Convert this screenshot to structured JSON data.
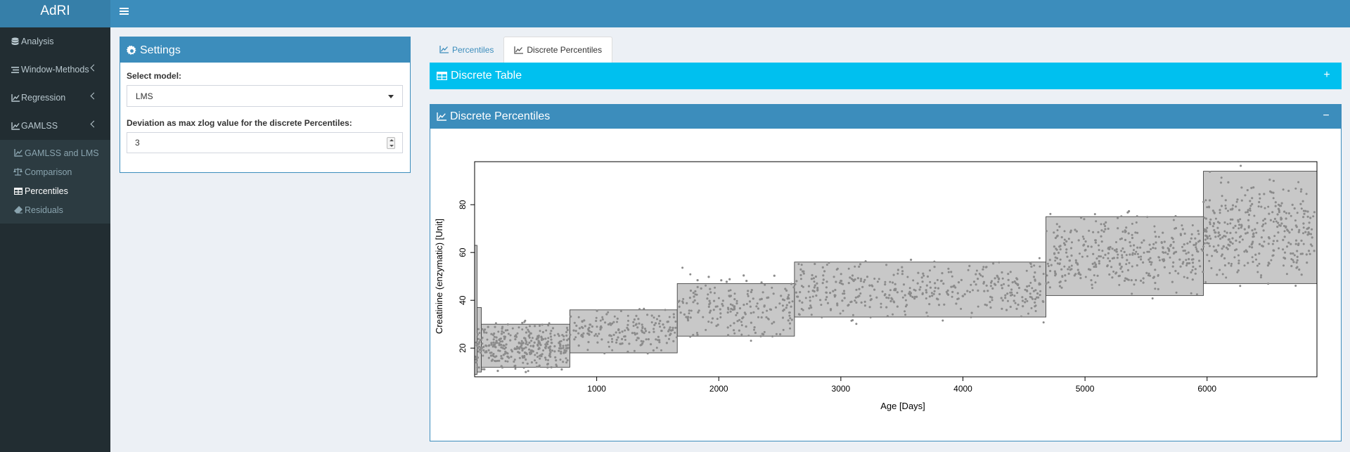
{
  "app": {
    "title": "AdRI"
  },
  "sidebar": {
    "items": [
      {
        "label": "Analysis",
        "icon": "database-icon",
        "expandable": false
      },
      {
        "label": "Window-Methods",
        "icon": "list-icon",
        "expandable": true
      },
      {
        "label": "Regression",
        "icon": "line-chart-icon",
        "expandable": true
      },
      {
        "label": "GAMLSS",
        "icon": "line-chart-icon",
        "expandable": true
      }
    ],
    "gamlss_submenu": [
      {
        "label": "GAMLSS and LMS",
        "icon": "line-chart-icon",
        "active": false
      },
      {
        "label": "Comparison",
        "icon": "balance-scale-icon",
        "active": false
      },
      {
        "label": "Percentiles",
        "icon": "table-icon",
        "active": true
      },
      {
        "label": "Residuals",
        "icon": "eraser-icon",
        "active": false
      }
    ]
  },
  "settings": {
    "title": "Settings",
    "model_label": "Select model:",
    "model_value": "LMS",
    "deviation_label": "Deviation as max zlog value for the discrete Percentiles:",
    "deviation_value": "3"
  },
  "tabs": [
    {
      "label": "Percentiles",
      "active": false
    },
    {
      "label": "Discrete Percentiles",
      "active": true
    }
  ],
  "discrete_table": {
    "title": "Discrete Table",
    "tool": "+"
  },
  "discrete_percentiles": {
    "title": "Discrete Percentiles",
    "tool": "−"
  },
  "colors": {
    "header": "#3c8dbc",
    "logo": "#367fa9",
    "sidebar": "#222d32",
    "info_box": "#00c0ef",
    "band_fill": "#bebebe",
    "points": "#8c8c8c"
  },
  "chart_data": {
    "type": "scatter",
    "xlabel": "Age [Days]",
    "ylabel": "Creatinine (enzymatic) [Unit]",
    "xlim": [
      0,
      6900
    ],
    "ylim": [
      8,
      98
    ],
    "xticks": [
      1000,
      2000,
      3000,
      4000,
      5000,
      6000
    ],
    "yticks": [
      20,
      40,
      60,
      80
    ],
    "bands": [
      {
        "x": [
          0,
          20
        ],
        "low": 9,
        "high": 63
      },
      {
        "x": [
          20,
          55
        ],
        "low": 10,
        "high": 37
      },
      {
        "x": [
          55,
          780
        ],
        "low": 12,
        "high": 30
      },
      {
        "x": [
          780,
          1660
        ],
        "low": 18,
        "high": 36
      },
      {
        "x": [
          1660,
          2620
        ],
        "low": 25,
        "high": 47
      },
      {
        "x": [
          2620,
          4680
        ],
        "low": 33,
        "high": 56
      },
      {
        "x": [
          4680,
          5970
        ],
        "low": 42,
        "high": 75
      },
      {
        "x": [
          5970,
          6900
        ],
        "low": 47,
        "high": 94
      }
    ],
    "points_description_free": true,
    "point_clusters": [
      {
        "x": [
          5,
          780
        ],
        "y": [
          8,
          33
        ],
        "n": 230
      },
      {
        "x": [
          780,
          1660
        ],
        "y": [
          17,
          38
        ],
        "n": 120
      },
      {
        "x": [
          1660,
          2620
        ],
        "y": [
          21,
          54
        ],
        "n": 130
      },
      {
        "x": [
          2620,
          4680
        ],
        "y": [
          29,
          59
        ],
        "n": 260
      },
      {
        "x": [
          4680,
          5970
        ],
        "y": [
          38,
          80
        ],
        "n": 240
      },
      {
        "x": [
          5970,
          6880
        ],
        "y": [
          43,
          97
        ],
        "n": 230
      }
    ],
    "grid": false,
    "legend": "none"
  }
}
